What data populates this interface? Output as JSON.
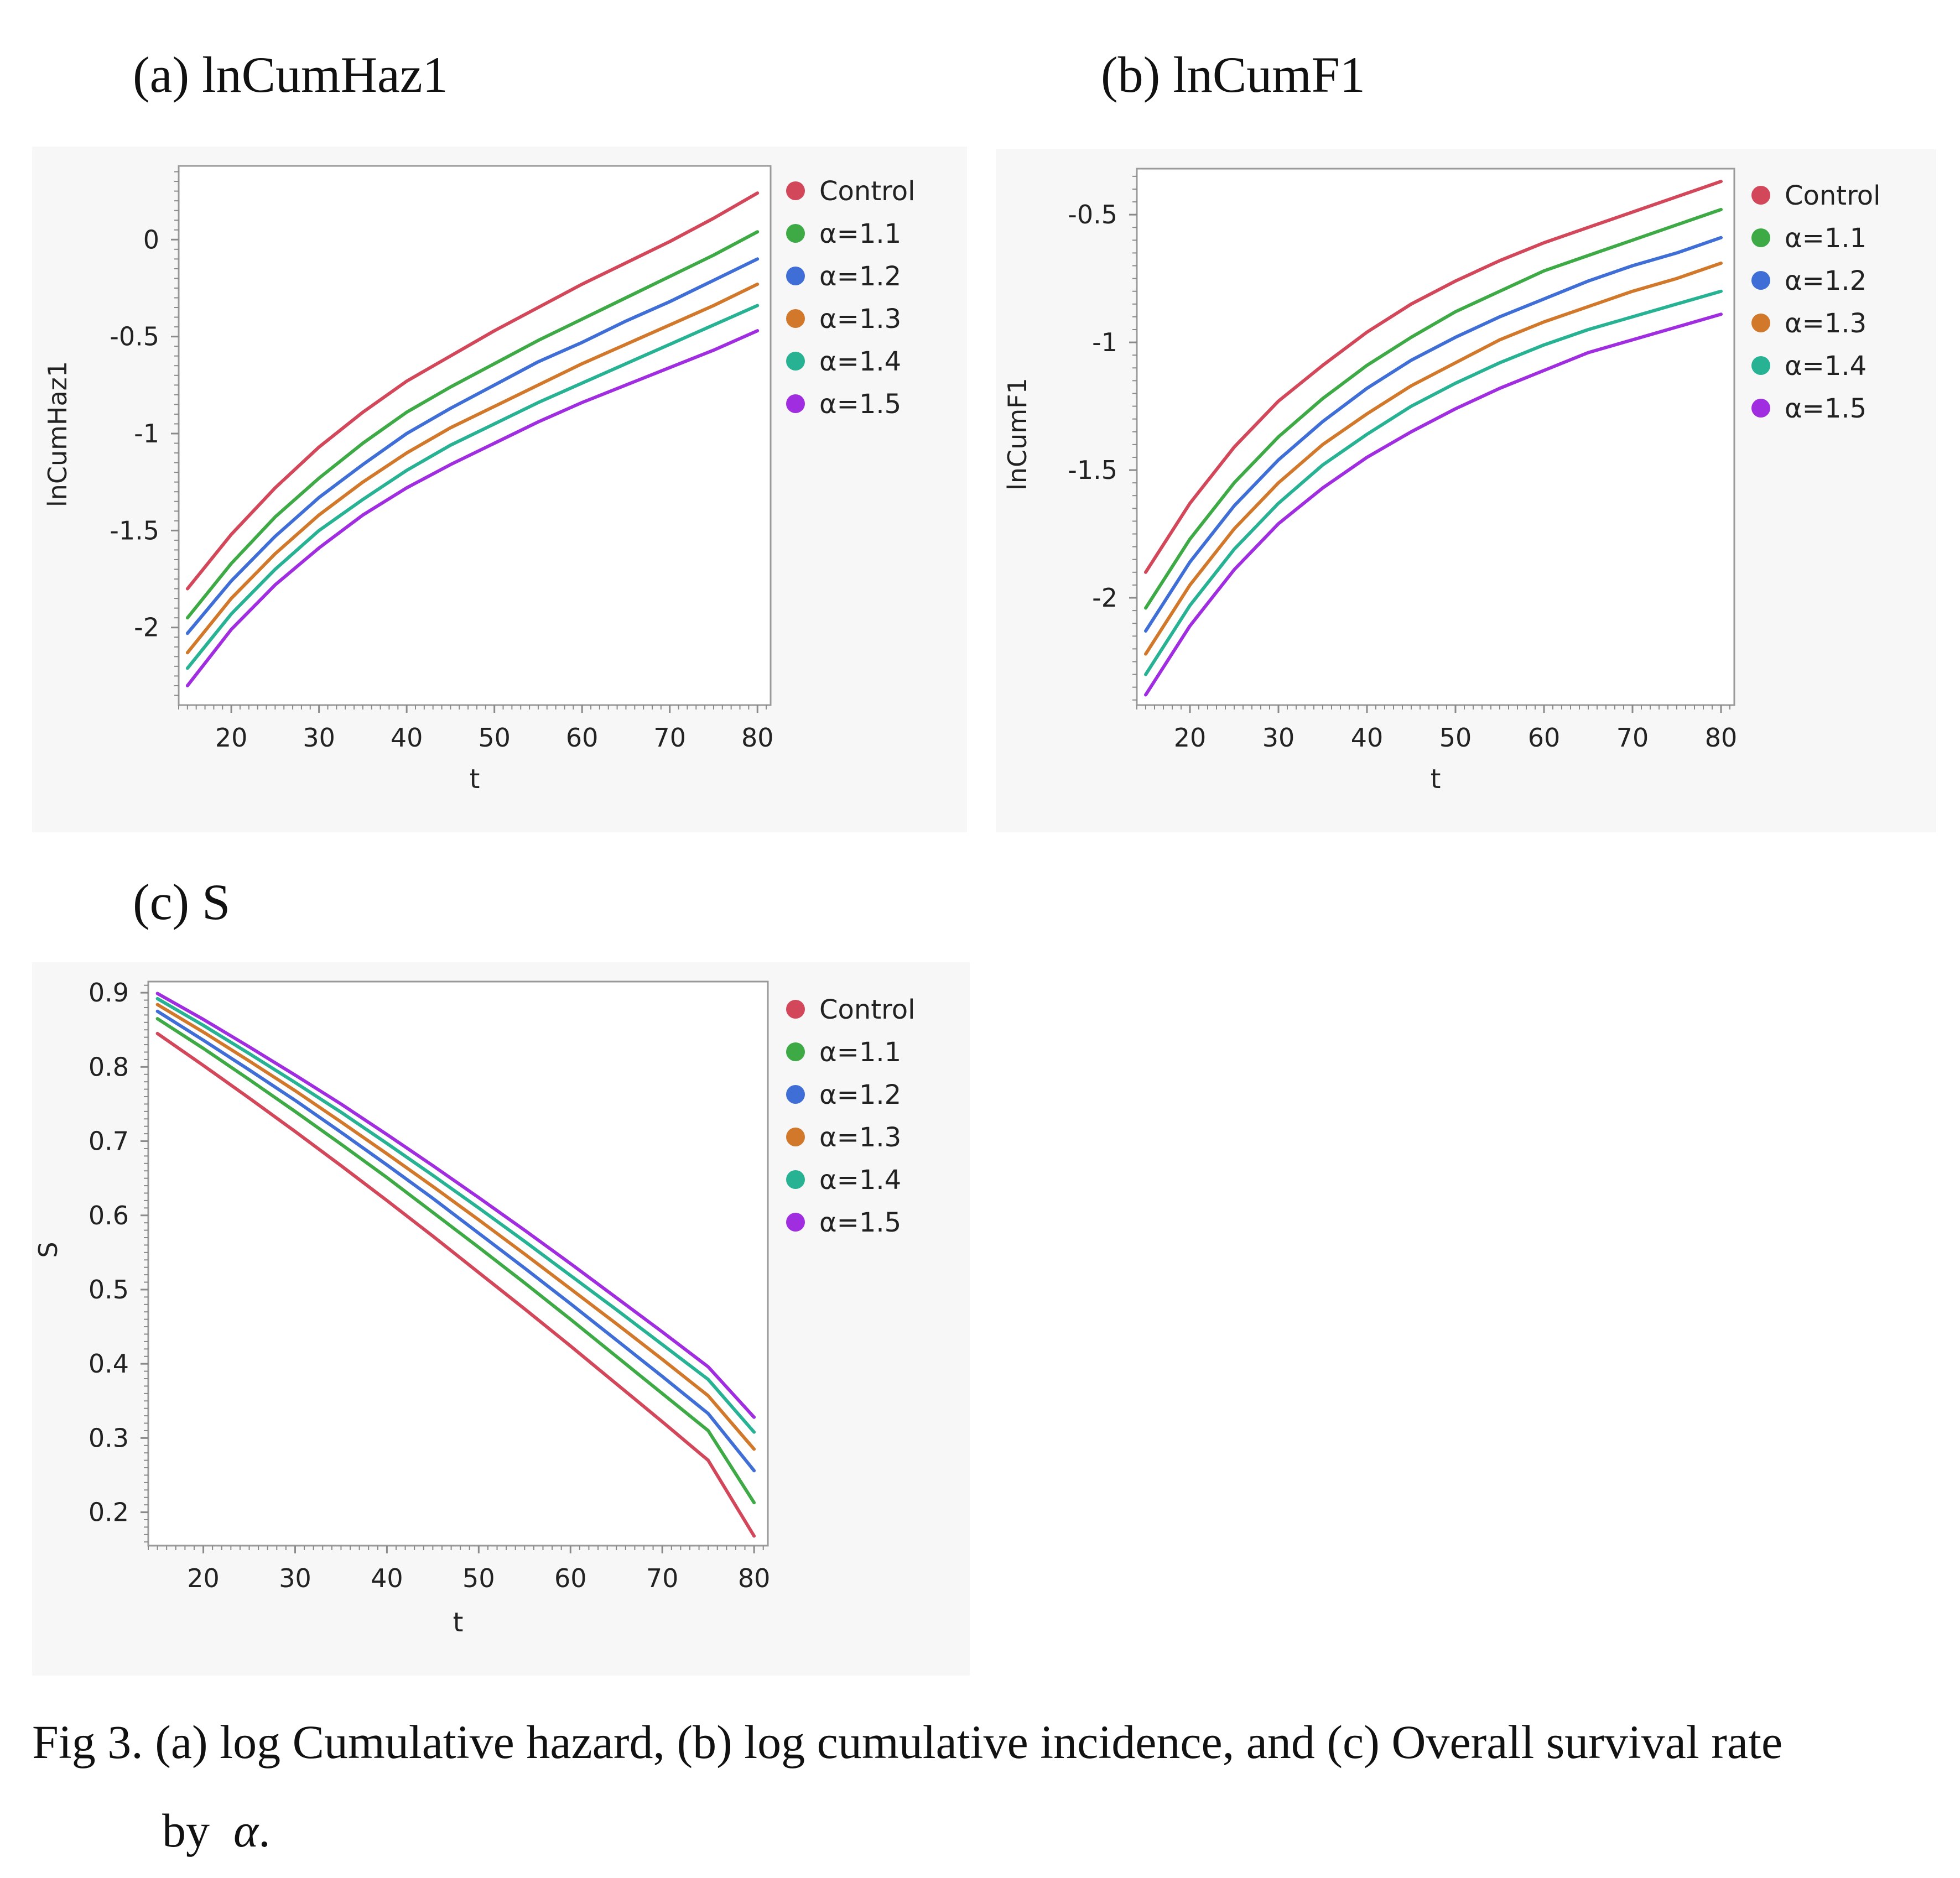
{
  "panels": [
    {
      "label": "(a) lnCumHaz1"
    },
    {
      "label": "(b) lnCumF1"
    },
    {
      "label": "(c) S"
    }
  ],
  "caption": {
    "line1": "Fig 3. (a) log Cumulative hazard, (b) log cumulative incidence, and (c) Overall survival rate",
    "line2_prefix": "by",
    "line2_symbol": "α",
    "line2_suffix": "."
  },
  "legend": {
    "items": [
      {
        "name": "Control",
        "color": "#d3475a"
      },
      {
        "name": "α=1.1",
        "color": "#3daa45"
      },
      {
        "name": "α=1.2",
        "color": "#3f6fd6"
      },
      {
        "name": "α=1.3",
        "color": "#d2782b"
      },
      {
        "name": "α=1.4",
        "color": "#27b293"
      },
      {
        "name": "α=1.5",
        "color": "#a02ee0"
      }
    ]
  },
  "chart_data": [
    {
      "type": "line",
      "xlabel": "t",
      "ylabel": "lnCumHaz1",
      "xlim": [
        14,
        81.5
      ],
      "ylim": [
        -2.4,
        0.38
      ],
      "xticks": [
        20,
        30,
        40,
        50,
        60,
        70,
        80
      ],
      "yticks": [
        0,
        -0.5,
        -1,
        -1.5,
        -2
      ],
      "ytick_labels": [
        "0",
        "-0.5",
        "-1",
        "-1.5",
        "-2"
      ],
      "x": [
        15,
        20,
        25,
        30,
        35,
        40,
        45,
        50,
        55,
        60,
        65,
        70,
        75,
        80
      ],
      "series": [
        {
          "name": "Control",
          "values": [
            -1.8,
            -1.52,
            -1.28,
            -1.07,
            -0.89,
            -0.73,
            -0.6,
            -0.47,
            -0.35,
            -0.23,
            -0.12,
            -0.01,
            0.11,
            0.24
          ]
        },
        {
          "name": "α=1.1",
          "values": [
            -1.95,
            -1.67,
            -1.43,
            -1.23,
            -1.05,
            -0.89,
            -0.76,
            -0.64,
            -0.52,
            -0.41,
            -0.3,
            -0.19,
            -0.08,
            0.04
          ]
        },
        {
          "name": "α=1.2",
          "values": [
            -2.03,
            -1.76,
            -1.53,
            -1.33,
            -1.16,
            -1.0,
            -0.87,
            -0.75,
            -0.63,
            -0.53,
            -0.42,
            -0.32,
            -0.21,
            -0.1
          ]
        },
        {
          "name": "α=1.3",
          "values": [
            -2.13,
            -1.85,
            -1.62,
            -1.42,
            -1.25,
            -1.1,
            -0.97,
            -0.86,
            -0.75,
            -0.64,
            -0.54,
            -0.44,
            -0.34,
            -0.23
          ]
        },
        {
          "name": "α=1.4",
          "values": [
            -2.21,
            -1.93,
            -1.7,
            -1.5,
            -1.34,
            -1.19,
            -1.06,
            -0.95,
            -0.84,
            -0.74,
            -0.64,
            -0.54,
            -0.44,
            -0.34
          ]
        },
        {
          "name": "α=1.5",
          "values": [
            -2.3,
            -2.01,
            -1.78,
            -1.59,
            -1.42,
            -1.28,
            -1.16,
            -1.05,
            -0.94,
            -0.84,
            -0.75,
            -0.66,
            -0.57,
            -0.47
          ]
        }
      ]
    },
    {
      "type": "line",
      "xlabel": "t",
      "ylabel": "lnCumF1",
      "xlim": [
        14,
        81.5
      ],
      "ylim": [
        -2.42,
        -0.32
      ],
      "xticks": [
        20,
        30,
        40,
        50,
        60,
        70,
        80
      ],
      "yticks": [
        -0.5,
        -1,
        -1.5,
        -2
      ],
      "ytick_labels": [
        "-0.5",
        "-1",
        "-1.5",
        "-2"
      ],
      "x": [
        15,
        20,
        25,
        30,
        35,
        40,
        45,
        50,
        55,
        60,
        65,
        70,
        75,
        80
      ],
      "series": [
        {
          "name": "Control",
          "values": [
            -1.9,
            -1.63,
            -1.41,
            -1.23,
            -1.09,
            -0.96,
            -0.85,
            -0.76,
            -0.68,
            -0.61,
            -0.55,
            -0.49,
            -0.43,
            -0.37
          ]
        },
        {
          "name": "α=1.1",
          "values": [
            -2.04,
            -1.77,
            -1.55,
            -1.37,
            -1.22,
            -1.09,
            -0.98,
            -0.88,
            -0.8,
            -0.72,
            -0.66,
            -0.6,
            -0.54,
            -0.48
          ]
        },
        {
          "name": "α=1.2",
          "values": [
            -2.13,
            -1.86,
            -1.64,
            -1.46,
            -1.31,
            -1.18,
            -1.07,
            -0.98,
            -0.9,
            -0.83,
            -0.76,
            -0.7,
            -0.65,
            -0.59
          ]
        },
        {
          "name": "α=1.3",
          "values": [
            -2.22,
            -1.95,
            -1.73,
            -1.55,
            -1.4,
            -1.28,
            -1.17,
            -1.08,
            -0.99,
            -0.92,
            -0.86,
            -0.8,
            -0.75,
            -0.69
          ]
        },
        {
          "name": "α=1.4",
          "values": [
            -2.3,
            -2.03,
            -1.81,
            -1.63,
            -1.48,
            -1.36,
            -1.25,
            -1.16,
            -1.08,
            -1.01,
            -0.95,
            -0.9,
            -0.85,
            -0.8
          ]
        },
        {
          "name": "α=1.5",
          "values": [
            -2.38,
            -2.11,
            -1.89,
            -1.71,
            -1.57,
            -1.45,
            -1.35,
            -1.26,
            -1.18,
            -1.11,
            -1.04,
            -0.99,
            -0.94,
            -0.89
          ]
        }
      ]
    },
    {
      "type": "line",
      "xlabel": "t",
      "ylabel": "S",
      "xlim": [
        14,
        81.5
      ],
      "ylim": [
        0.155,
        0.915
      ],
      "xticks": [
        20,
        30,
        40,
        50,
        60,
        70,
        80
      ],
      "yticks": [
        0.9,
        0.8,
        0.7,
        0.6,
        0.5,
        0.4,
        0.3,
        0.2
      ],
      "ytick_labels": [
        "0.9",
        "0.8",
        "0.7",
        "0.6",
        "0.5",
        "0.4",
        "0.3",
        "0.2"
      ],
      "x": [
        15,
        20,
        25,
        30,
        35,
        40,
        45,
        50,
        55,
        60,
        65,
        70,
        75,
        80
      ],
      "series": [
        {
          "name": "Control",
          "values": [
            0.845,
            0.802,
            0.758,
            0.713,
            0.667,
            0.62,
            0.572,
            0.523,
            0.474,
            0.424,
            0.373,
            0.322,
            0.27,
            0.168
          ]
        },
        {
          "name": "α=1.1",
          "values": [
            0.865,
            0.825,
            0.783,
            0.74,
            0.696,
            0.651,
            0.604,
            0.557,
            0.509,
            0.46,
            0.41,
            0.36,
            0.31,
            0.213
          ]
        },
        {
          "name": "α=1.2",
          "values": [
            0.875,
            0.836,
            0.796,
            0.755,
            0.712,
            0.668,
            0.623,
            0.576,
            0.529,
            0.481,
            0.432,
            0.383,
            0.333,
            0.256
          ]
        },
        {
          "name": "α=1.3",
          "values": [
            0.884,
            0.847,
            0.808,
            0.768,
            0.726,
            0.683,
            0.639,
            0.594,
            0.548,
            0.501,
            0.454,
            0.406,
            0.357,
            0.285
          ]
        },
        {
          "name": "α=1.4",
          "values": [
            0.892,
            0.856,
            0.818,
            0.779,
            0.739,
            0.697,
            0.654,
            0.61,
            0.565,
            0.519,
            0.473,
            0.426,
            0.379,
            0.308
          ]
        },
        {
          "name": "α=1.5",
          "values": [
            0.899,
            0.864,
            0.827,
            0.789,
            0.75,
            0.709,
            0.667,
            0.624,
            0.58,
            0.535,
            0.489,
            0.443,
            0.396,
            0.328
          ]
        }
      ]
    }
  ]
}
